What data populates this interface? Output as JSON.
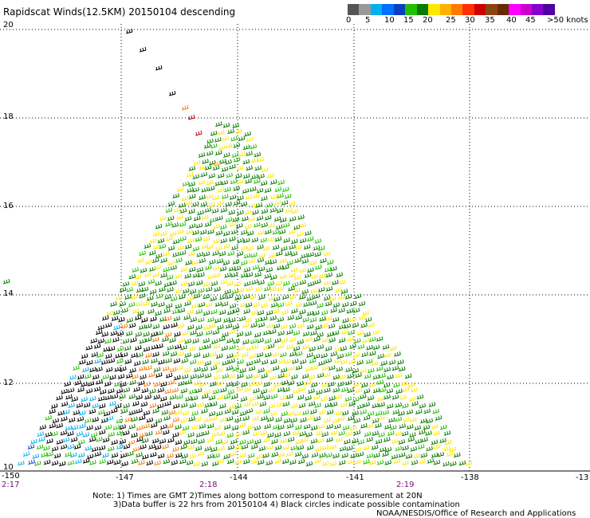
{
  "title": "Rapidscat Winds(12.5KM) 20150104 descending",
  "color_scale": {
    "colors": [
      "#555555",
      "#999999",
      "#00b0f0",
      "#0070ff",
      "#0a3fbf",
      "#22c000",
      "#0b7a00",
      "#ffe800",
      "#ffb000",
      "#ff7a00",
      "#ff3000",
      "#cc0000",
      "#8b4513",
      "#6a2a00",
      "#ff00ff",
      "#cc00cc",
      "#8800cc",
      "#5000a0"
    ],
    "labels": [
      "0",
      "5",
      "10",
      "15",
      "20",
      "25",
      "30",
      "35",
      "40",
      "45",
      ">50 knots"
    ]
  },
  "lat_labels": [
    "20",
    "18",
    "16",
    "14",
    "12",
    "10"
  ],
  "lon_labels": [
    "-150",
    "-147",
    "-144",
    "-141",
    "-138",
    "-13"
  ],
  "time_labels": [
    "2:17",
    "2:18",
    "2:19"
  ],
  "notes": {
    "line1": "Note: 1) Times are GMT 2)Times along bottom correspond to measurement at 20N",
    "line2": "3)Data buffer is 22 hrs from 20150104 4) Black circles indicate possible contamination",
    "line3": "NOAA/NESDIS/Office of Research and Applications"
  }
}
